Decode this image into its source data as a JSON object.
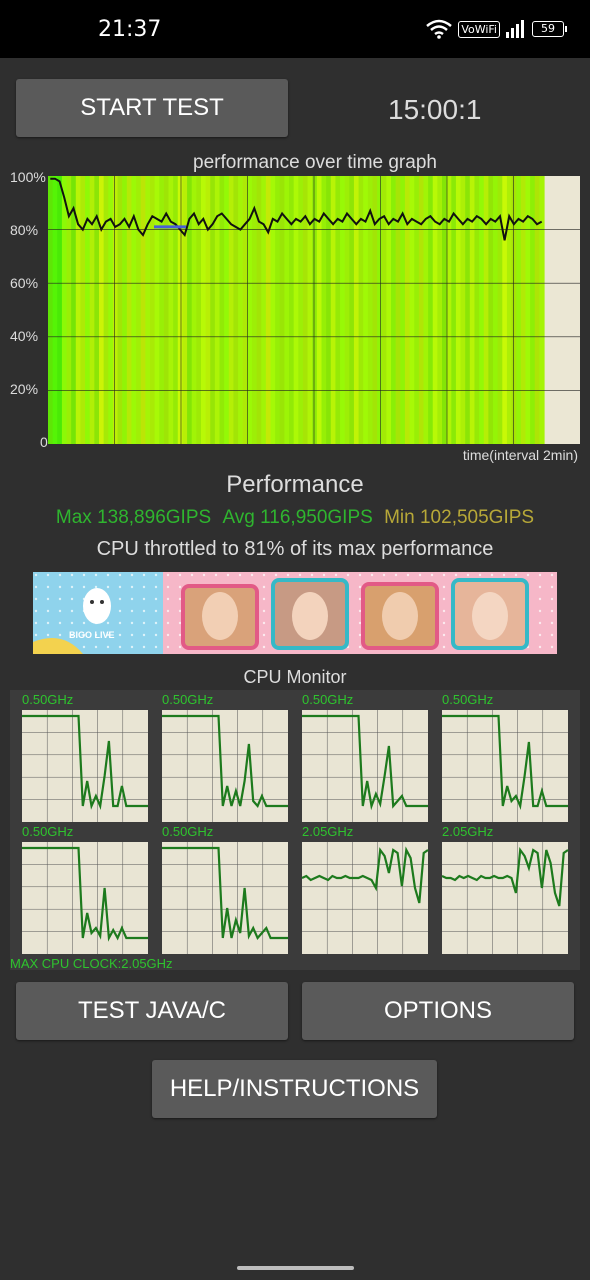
{
  "status_bar": {
    "time": "21:37",
    "vowifi": "VoWiFi",
    "battery": "59"
  },
  "controls": {
    "start_test": "START TEST",
    "timer": "15:00:1"
  },
  "graph": {
    "title": "performance over time graph",
    "y_ticks": [
      "100%",
      "80%",
      "60%",
      "40%",
      "20%",
      "0"
    ],
    "x_label": "time(interval 2min)",
    "line_values_pct": [
      99,
      99,
      98,
      92,
      85,
      88,
      82,
      80,
      84,
      82,
      85,
      80,
      83,
      84,
      81,
      82,
      84,
      81,
      85,
      80,
      78,
      82,
      85,
      84,
      83,
      86,
      83,
      82,
      80,
      78,
      84,
      86,
      82,
      84,
      80,
      82,
      85,
      86,
      84,
      82,
      81,
      80,
      82,
      84,
      88,
      83,
      82,
      79,
      84,
      83,
      86,
      84,
      82,
      84,
      83,
      85,
      82,
      84,
      83,
      86,
      84,
      82,
      84,
      83,
      86,
      84,
      82,
      84,
      83,
      87,
      82,
      84,
      85,
      82,
      84,
      83,
      86,
      82,
      84,
      83,
      82,
      84,
      85,
      83,
      82,
      84,
      83,
      86,
      84,
      82,
      84,
      83,
      85,
      84,
      82,
      84,
      83,
      85,
      76,
      85,
      82,
      84,
      83,
      85,
      84,
      82,
      83
    ],
    "marker_pct": 81
  },
  "performance": {
    "title": "Performance",
    "max": "Max 138,896GIPS",
    "avg": "Avg 116,950GIPS",
    "min": "Min 102,505GIPS",
    "throttle": "CPU throttled to 81% of its max performance",
    "colors": {
      "max": "#2fb52f",
      "avg": "#2fb52f",
      "min": "#b7a838"
    }
  },
  "ad": {
    "brand": "BIGO LIVE"
  },
  "cpu_monitor": {
    "title": "CPU Monitor",
    "max_clock": "MAX CPU CLOCK:2.05GHz",
    "cores": [
      {
        "label": "0.50GHz",
        "profile": [
          1,
          1,
          1,
          1,
          1,
          1,
          1,
          1,
          1,
          1,
          1,
          1,
          1,
          1,
          0.1,
          0.35,
          0.1,
          0.2,
          0.1,
          0.4,
          0.75,
          0.1,
          0.1,
          0.3,
          0.1,
          0.1,
          0.1,
          0.1,
          0.1,
          0.1
        ]
      },
      {
        "label": "0.50GHz",
        "profile": [
          1,
          1,
          1,
          1,
          1,
          1,
          1,
          1,
          1,
          1,
          1,
          1,
          1,
          1,
          0.1,
          0.3,
          0.1,
          0.25,
          0.1,
          0.35,
          0.72,
          0.15,
          0.1,
          0.2,
          0.1,
          0.1,
          0.1,
          0.1,
          0.1,
          0.1
        ]
      },
      {
        "label": "0.50GHz",
        "profile": [
          1,
          1,
          1,
          1,
          1,
          1,
          1,
          1,
          1,
          1,
          1,
          1,
          1,
          1,
          0.1,
          0.35,
          0.1,
          0.22,
          0.12,
          0.4,
          0.7,
          0.1,
          0.15,
          0.2,
          0.1,
          0.1,
          0.1,
          0.1,
          0.1,
          0.1
        ]
      },
      {
        "label": "0.50GHz",
        "profile": [
          1,
          1,
          1,
          1,
          1,
          1,
          1,
          1,
          1,
          1,
          1,
          1,
          1,
          1,
          0.1,
          0.3,
          0.15,
          0.2,
          0.1,
          0.4,
          0.74,
          0.1,
          0.1,
          0.25,
          0.1,
          0.1,
          0.1,
          0.1,
          0.1,
          0.1
        ]
      },
      {
        "label": "0.50GHz",
        "profile": [
          1,
          1,
          1,
          1,
          1,
          1,
          1,
          1,
          1,
          1,
          1,
          1,
          1,
          1,
          0.1,
          0.35,
          0.15,
          0.2,
          0.12,
          0.6,
          0.1,
          0.18,
          0.1,
          0.2,
          0.1,
          0.1,
          0.1,
          0.1,
          0.1,
          0.1
        ]
      },
      {
        "label": "0.50GHz",
        "profile": [
          1,
          1,
          1,
          1,
          1,
          1,
          1,
          1,
          1,
          1,
          1,
          1,
          1,
          1,
          0.1,
          0.4,
          0.1,
          0.28,
          0.15,
          0.6,
          0.12,
          0.2,
          0.1,
          0.15,
          0.2,
          0.1,
          0.1,
          0.1,
          0.1,
          0.1
        ]
      },
      {
        "label": "2.05GHz",
        "profile": [
          0.7,
          0.72,
          0.68,
          0.7,
          0.72,
          0.7,
          0.68,
          0.72,
          0.7,
          0.7,
          0.72,
          0.7,
          0.7,
          0.7,
          0.72,
          0.7,
          0.68,
          0.6,
          0.98,
          0.92,
          0.75,
          0.98,
          0.95,
          0.62,
          0.98,
          0.9,
          0.6,
          0.45,
          0.95,
          0.98
        ]
      },
      {
        "label": "2.05GHz",
        "profile": [
          0.72,
          0.7,
          0.7,
          0.68,
          0.72,
          0.7,
          0.72,
          0.7,
          0.68,
          0.72,
          0.7,
          0.7,
          0.72,
          0.7,
          0.7,
          0.72,
          0.7,
          0.55,
          0.98,
          0.92,
          0.8,
          0.98,
          0.95,
          0.6,
          0.98,
          0.85,
          0.55,
          0.42,
          0.95,
          0.98
        ]
      }
    ]
  },
  "buttons": {
    "test_java": "TEST JAVA/C",
    "options": "OPTIONS",
    "help": "HELP/INSTRUCTIONS"
  }
}
